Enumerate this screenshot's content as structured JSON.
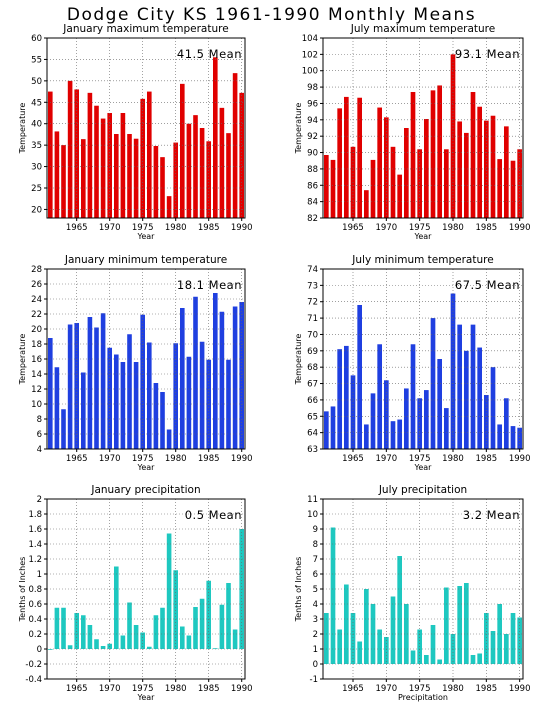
{
  "page_title": "Dodge City KS  1961-1990 Monthly Means",
  "chart_data": [
    {
      "type": "bar",
      "title": "January maximum temperature",
      "mean_label": "41.5 Mean",
      "color": "#e00000",
      "ylabel": "Temperature",
      "xlabel": "Year",
      "ylim": [
        18,
        60
      ],
      "yticks": [
        20,
        25,
        30,
        35,
        40,
        45,
        50,
        55,
        60
      ],
      "ytick_labels": [
        "20",
        "25",
        "30",
        "35",
        "40",
        "45",
        "50",
        "55",
        "60"
      ],
      "xlim": [
        1961,
        1990
      ],
      "xticks": [
        1965,
        1970,
        1975,
        1980,
        1985,
        1990
      ],
      "xtick_labels": [
        "1965",
        "1970",
        "1975",
        "1980",
        "1985",
        "1990"
      ],
      "grid": true,
      "x": [
        1961,
        1962,
        1963,
        1964,
        1965,
        1966,
        1967,
        1968,
        1969,
        1970,
        1971,
        1972,
        1973,
        1974,
        1975,
        1976,
        1977,
        1978,
        1979,
        1980,
        1981,
        1982,
        1983,
        1984,
        1985,
        1986,
        1987,
        1988,
        1989,
        1990
      ],
      "values": [
        47.5,
        38.2,
        35.0,
        50.0,
        48.0,
        36.4,
        47.2,
        44.2,
        41.2,
        42.5,
        37.6,
        42.5,
        37.6,
        36.5,
        45.8,
        47.5,
        34.8,
        32.2,
        23.1,
        35.6,
        49.3,
        40.0,
        42.0,
        39.0,
        35.9,
        55.5,
        43.7,
        37.8,
        51.8,
        47.2
      ]
    },
    {
      "type": "bar",
      "title": "July maximum temperature",
      "mean_label": "93.1 Mean",
      "color": "#e00000",
      "ylabel": "Temperature",
      "xlabel": "Year",
      "ylim": [
        82,
        104
      ],
      "yticks": [
        82,
        84,
        86,
        88,
        90,
        92,
        94,
        96,
        98,
        100,
        102,
        104
      ],
      "ytick_labels": [
        "82",
        "84",
        "86",
        "88",
        "90",
        "92",
        "94",
        "96",
        "98",
        "100",
        "102",
        "104"
      ],
      "xlim": [
        1961,
        1990
      ],
      "xticks": [
        1965,
        1970,
        1975,
        1980,
        1985,
        1990
      ],
      "xtick_labels": [
        "1965",
        "1970",
        "1975",
        "1980",
        "1985",
        "1990"
      ],
      "grid": true,
      "x": [
        1961,
        1962,
        1963,
        1964,
        1965,
        1966,
        1967,
        1968,
        1969,
        1970,
        1971,
        1972,
        1973,
        1974,
        1975,
        1976,
        1977,
        1978,
        1979,
        1980,
        1981,
        1982,
        1983,
        1984,
        1985,
        1986,
        1987,
        1988,
        1989,
        1990
      ],
      "values": [
        89.7,
        89.1,
        95.4,
        96.8,
        90.7,
        96.7,
        85.4,
        89.1,
        95.5,
        94.3,
        90.7,
        87.3,
        93.0,
        97.4,
        90.4,
        94.1,
        97.6,
        98.2,
        90.4,
        102.0,
        93.8,
        92.4,
        97.4,
        95.6,
        93.9,
        94.5,
        89.2,
        93.2,
        89.0,
        90.4
      ]
    },
    {
      "type": "bar",
      "title": "January minimum temperature",
      "mean_label": "18.1 Mean",
      "color": "#1f3fe0",
      "ylabel": "Temperature",
      "xlabel": "Year",
      "ylim": [
        4,
        28
      ],
      "yticks": [
        4,
        6,
        8,
        10,
        12,
        14,
        16,
        18,
        20,
        22,
        24,
        26,
        28
      ],
      "ytick_labels": [
        "4",
        "6",
        "8",
        "10",
        "12",
        "14",
        "16",
        "18",
        "20",
        "22",
        "24",
        "26",
        "28"
      ],
      "xlim": [
        1961,
        1990
      ],
      "xticks": [
        1965,
        1970,
        1975,
        1980,
        1985,
        1990
      ],
      "xtick_labels": [
        "1965",
        "1970",
        "1975",
        "1980",
        "1985",
        "1990"
      ],
      "grid": true,
      "x": [
        1961,
        1962,
        1963,
        1964,
        1965,
        1966,
        1967,
        1968,
        1969,
        1970,
        1971,
        1972,
        1973,
        1974,
        1975,
        1976,
        1977,
        1978,
        1979,
        1980,
        1981,
        1982,
        1983,
        1984,
        1985,
        1986,
        1987,
        1988,
        1989,
        1990
      ],
      "values": [
        18.8,
        14.9,
        9.3,
        20.6,
        20.8,
        14.2,
        21.6,
        20.2,
        22.1,
        17.5,
        16.6,
        15.6,
        19.3,
        15.6,
        21.9,
        18.2,
        12.8,
        11.6,
        6.6,
        18.1,
        22.8,
        16.3,
        24.3,
        18.3,
        15.9,
        24.8,
        22.3,
        15.9,
        23.0,
        23.6
      ]
    },
    {
      "type": "bar",
      "title": "July minimum temperature",
      "mean_label": "67.5 Mean",
      "color": "#1f3fe0",
      "ylabel": "Temperature",
      "xlabel": "Year",
      "ylim": [
        63,
        74
      ],
      "yticks": [
        63,
        64,
        65,
        66,
        67,
        68,
        69,
        70,
        71,
        72,
        73,
        74
      ],
      "ytick_labels": [
        "63",
        "64",
        "65",
        "66",
        "67",
        "68",
        "69",
        "70",
        "71",
        "72",
        "73",
        "74"
      ],
      "xlim": [
        1961,
        1990
      ],
      "xticks": [
        1965,
        1970,
        1975,
        1980,
        1985,
        1990
      ],
      "xtick_labels": [
        "1965",
        "1970",
        "1975",
        "1980",
        "1985",
        "1990"
      ],
      "grid": true,
      "x": [
        1961,
        1962,
        1963,
        1964,
        1965,
        1966,
        1967,
        1968,
        1969,
        1970,
        1971,
        1972,
        1973,
        1974,
        1975,
        1976,
        1977,
        1978,
        1979,
        1980,
        1981,
        1982,
        1983,
        1984,
        1985,
        1986,
        1987,
        1988,
        1989,
        1990
      ],
      "values": [
        65.3,
        65.6,
        69.1,
        69.3,
        67.5,
        71.8,
        64.5,
        66.4,
        69.4,
        67.2,
        64.7,
        64.8,
        66.7,
        69.4,
        66.1,
        66.6,
        71.0,
        68.5,
        65.5,
        72.5,
        70.6,
        69.0,
        70.6,
        69.2,
        66.3,
        68.0,
        64.5,
        66.1,
        64.4,
        64.3
      ]
    },
    {
      "type": "bar",
      "title": "January precipitation",
      "mean_label": "0.5 Mean",
      "color": "#1ec8c0",
      "ylabel": "Tenths of Inches",
      "xlabel": "Year",
      "ylim": [
        -0.4,
        2
      ],
      "yticks": [
        -0.4,
        -0.2,
        0,
        0.2,
        0.4,
        0.6,
        0.8,
        1,
        1.2,
        1.4,
        1.6,
        1.8,
        2
      ],
      "ytick_labels": [
        "-0.4",
        "-0.2",
        "0",
        "0.2",
        "0.4",
        "0.6",
        "0.8",
        "1",
        "1.2",
        "1.4",
        "1.6",
        "1.8",
        "2"
      ],
      "xlim": [
        1961,
        1990
      ],
      "xticks": [
        1965,
        1970,
        1975,
        1980,
        1985,
        1990
      ],
      "xtick_labels": [
        "1965",
        "1970",
        "1975",
        "1980",
        "1985",
        "1990"
      ],
      "grid": true,
      "x": [
        1961,
        1962,
        1963,
        1964,
        1965,
        1966,
        1967,
        1968,
        1969,
        1970,
        1971,
        1972,
        1973,
        1974,
        1975,
        1976,
        1977,
        1978,
        1979,
        1980,
        1981,
        1982,
        1983,
        1984,
        1985,
        1986,
        1987,
        1988,
        1989,
        1990
      ],
      "values": [
        0.0,
        0.55,
        0.55,
        0.05,
        0.48,
        0.45,
        0.32,
        0.13,
        0.04,
        0.07,
        1.1,
        0.18,
        0.62,
        0.32,
        0.22,
        0.03,
        0.45,
        0.55,
        1.54,
        1.05,
        0.3,
        0.18,
        0.56,
        0.67,
        0.91,
        0.01,
        0.59,
        0.88,
        0.26,
        1.6
      ]
    },
    {
      "type": "bar",
      "title": "July precipitation",
      "mean_label": "3.2 Mean",
      "color": "#1ec8c0",
      "ylabel": "Tenths of Inches",
      "xlabel": "Precipitation",
      "ylim": [
        -1,
        11
      ],
      "yticks": [
        -1,
        0,
        1,
        2,
        3,
        4,
        5,
        6,
        7,
        8,
        9,
        10,
        11
      ],
      "ytick_labels": [
        "-1",
        "0",
        "1",
        "2",
        "3",
        "4",
        "5",
        "6",
        "7",
        "8",
        "9",
        "10",
        "11"
      ],
      "xlim": [
        1961,
        1990
      ],
      "xticks": [
        1965,
        1970,
        1975,
        1980,
        1985,
        1990
      ],
      "xtick_labels": [
        "1965",
        "1970",
        "1975",
        "1980",
        "1985",
        "1990"
      ],
      "grid": true,
      "x": [
        1961,
        1962,
        1963,
        1964,
        1965,
        1966,
        1967,
        1968,
        1969,
        1970,
        1971,
        1972,
        1973,
        1974,
        1975,
        1976,
        1977,
        1978,
        1979,
        1980,
        1981,
        1982,
        1983,
        1984,
        1985,
        1986,
        1987,
        1988,
        1989,
        1990
      ],
      "values": [
        3.4,
        9.1,
        2.3,
        5.3,
        3.4,
        1.5,
        5.0,
        4.0,
        2.3,
        1.8,
        4.5,
        7.2,
        4.0,
        0.9,
        2.3,
        0.6,
        2.6,
        0.3,
        5.1,
        2.0,
        5.2,
        5.4,
        0.6,
        0.7,
        3.4,
        2.2,
        4.0,
        2.0,
        3.4,
        3.1
      ]
    }
  ]
}
